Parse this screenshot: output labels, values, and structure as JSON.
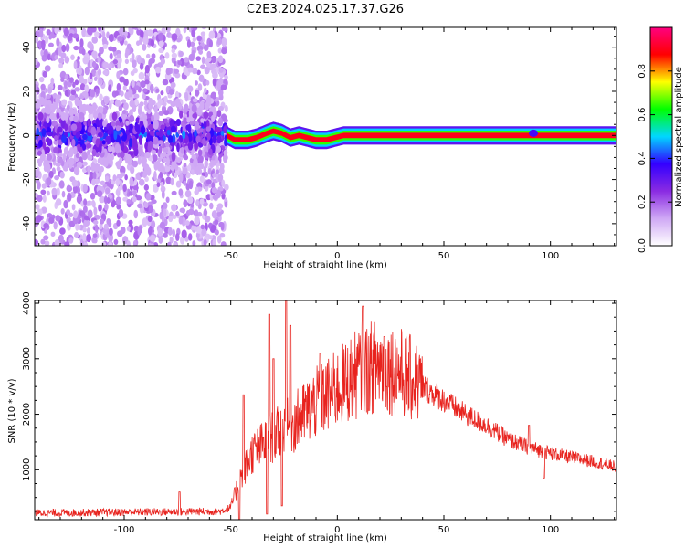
{
  "chart_data": [
    {
      "type": "heatmap",
      "title": "C2E3.2024.025.17.37.G26",
      "xlabel": "Height of straight line (km)",
      "ylabel": "Frequency (Hz)",
      "xlim": [
        -142,
        131
      ],
      "ylim": [
        -50,
        49
      ],
      "x_ticks": [
        -100,
        -50,
        0,
        50,
        100
      ],
      "y_ticks": [
        -40,
        -20,
        0,
        20,
        40
      ],
      "colorbar": {
        "label": "Normalized spectral amplitude",
        "range": [
          0,
          1
        ],
        "ticks": [
          0.0,
          0.2,
          0.4,
          0.6,
          0.8
        ],
        "tick_labels": [
          "0.0",
          "0.2",
          "0.4",
          "0.6",
          "0.8"
        ],
        "colors": [
          "#ffffff",
          "#cfa8f5",
          "#8a2be2",
          "#3300ff",
          "#00d7ff",
          "#00ff00",
          "#ffff00",
          "#ff0000",
          "#ff0080"
        ]
      },
      "noise_region": {
        "x_range": [
          -142,
          -52
        ],
        "freq_spread": 50,
        "core_spread": 8,
        "intensity": 0.35
      },
      "signal_track": [
        {
          "x": -52,
          "y": 0,
          "a": 0.45
        },
        {
          "x": -48,
          "y": -2,
          "a": 0.8
        },
        {
          "x": -42,
          "y": -2,
          "a": 0.85
        },
        {
          "x": -38,
          "y": -1,
          "a": 0.7
        },
        {
          "x": -33,
          "y": 1,
          "a": 0.75
        },
        {
          "x": -30,
          "y": 2,
          "a": 0.85
        },
        {
          "x": -26,
          "y": 1,
          "a": 0.8
        },
        {
          "x": -22,
          "y": -1,
          "a": 0.8
        },
        {
          "x": -18,
          "y": 0,
          "a": 0.85
        },
        {
          "x": -14,
          "y": -1,
          "a": 0.7
        },
        {
          "x": -10,
          "y": -2,
          "a": 0.85
        },
        {
          "x": -5,
          "y": -2,
          "a": 0.8
        },
        {
          "x": -1,
          "y": -1,
          "a": 0.75
        },
        {
          "x": 3,
          "y": 0,
          "a": 0.85
        },
        {
          "x": 8,
          "y": 0,
          "a": 0.9
        },
        {
          "x": 131,
          "y": 0,
          "a": 0.9
        }
      ],
      "signal_blip": {
        "x": 92,
        "y": 1
      }
    },
    {
      "type": "line",
      "xlabel": "Height of straight line (km)",
      "ylabel": "SNR (10 * v/v)",
      "xlim": [
        -142,
        131
      ],
      "ylim": [
        100,
        4050
      ],
      "x_ticks": [
        -100,
        -50,
        0,
        50,
        100
      ],
      "y_ticks": [
        1000,
        2000,
        3000,
        4000
      ],
      "color": "#e8231e",
      "envelope": [
        {
          "x": -142,
          "y": 220
        },
        {
          "x": -55,
          "y": 250
        },
        {
          "x": -50,
          "y": 320
        },
        {
          "x": -46,
          "y": 800
        },
        {
          "x": -40,
          "y": 1300
        },
        {
          "x": -30,
          "y": 1600
        },
        {
          "x": -20,
          "y": 1850
        },
        {
          "x": -10,
          "y": 2200
        },
        {
          "x": 0,
          "y": 2450
        },
        {
          "x": 10,
          "y": 2750
        },
        {
          "x": 20,
          "y": 2900
        },
        {
          "x": 30,
          "y": 2750
        },
        {
          "x": 40,
          "y": 2500
        },
        {
          "x": 50,
          "y": 2250
        },
        {
          "x": 60,
          "y": 2000
        },
        {
          "x": 70,
          "y": 1800
        },
        {
          "x": 80,
          "y": 1550
        },
        {
          "x": 90,
          "y": 1400
        },
        {
          "x": 100,
          "y": 1300
        },
        {
          "x": 110,
          "y": 1220
        },
        {
          "x": 120,
          "y": 1150
        },
        {
          "x": 131,
          "y": 1050
        }
      ],
      "spikes": [
        {
          "x": -74,
          "y": 600
        },
        {
          "x": -44,
          "y": 2350
        },
        {
          "x": -32,
          "y": 3800
        },
        {
          "x": -30,
          "y": 3000
        },
        {
          "x": -24,
          "y": 4050
        },
        {
          "x": -22,
          "y": 3600
        },
        {
          "x": -8,
          "y": 3100
        },
        {
          "x": 12,
          "y": 3950
        },
        {
          "x": 22,
          "y": 3400
        },
        {
          "x": 90,
          "y": 1800
        },
        {
          "x": 97,
          "y": 1850
        }
      ],
      "dips": [
        {
          "x": -46,
          "y": 100
        },
        {
          "x": -33,
          "y": 200
        },
        {
          "x": -26,
          "y": 350
        },
        {
          "x": 97,
          "y": 850
        }
      ]
    }
  ]
}
